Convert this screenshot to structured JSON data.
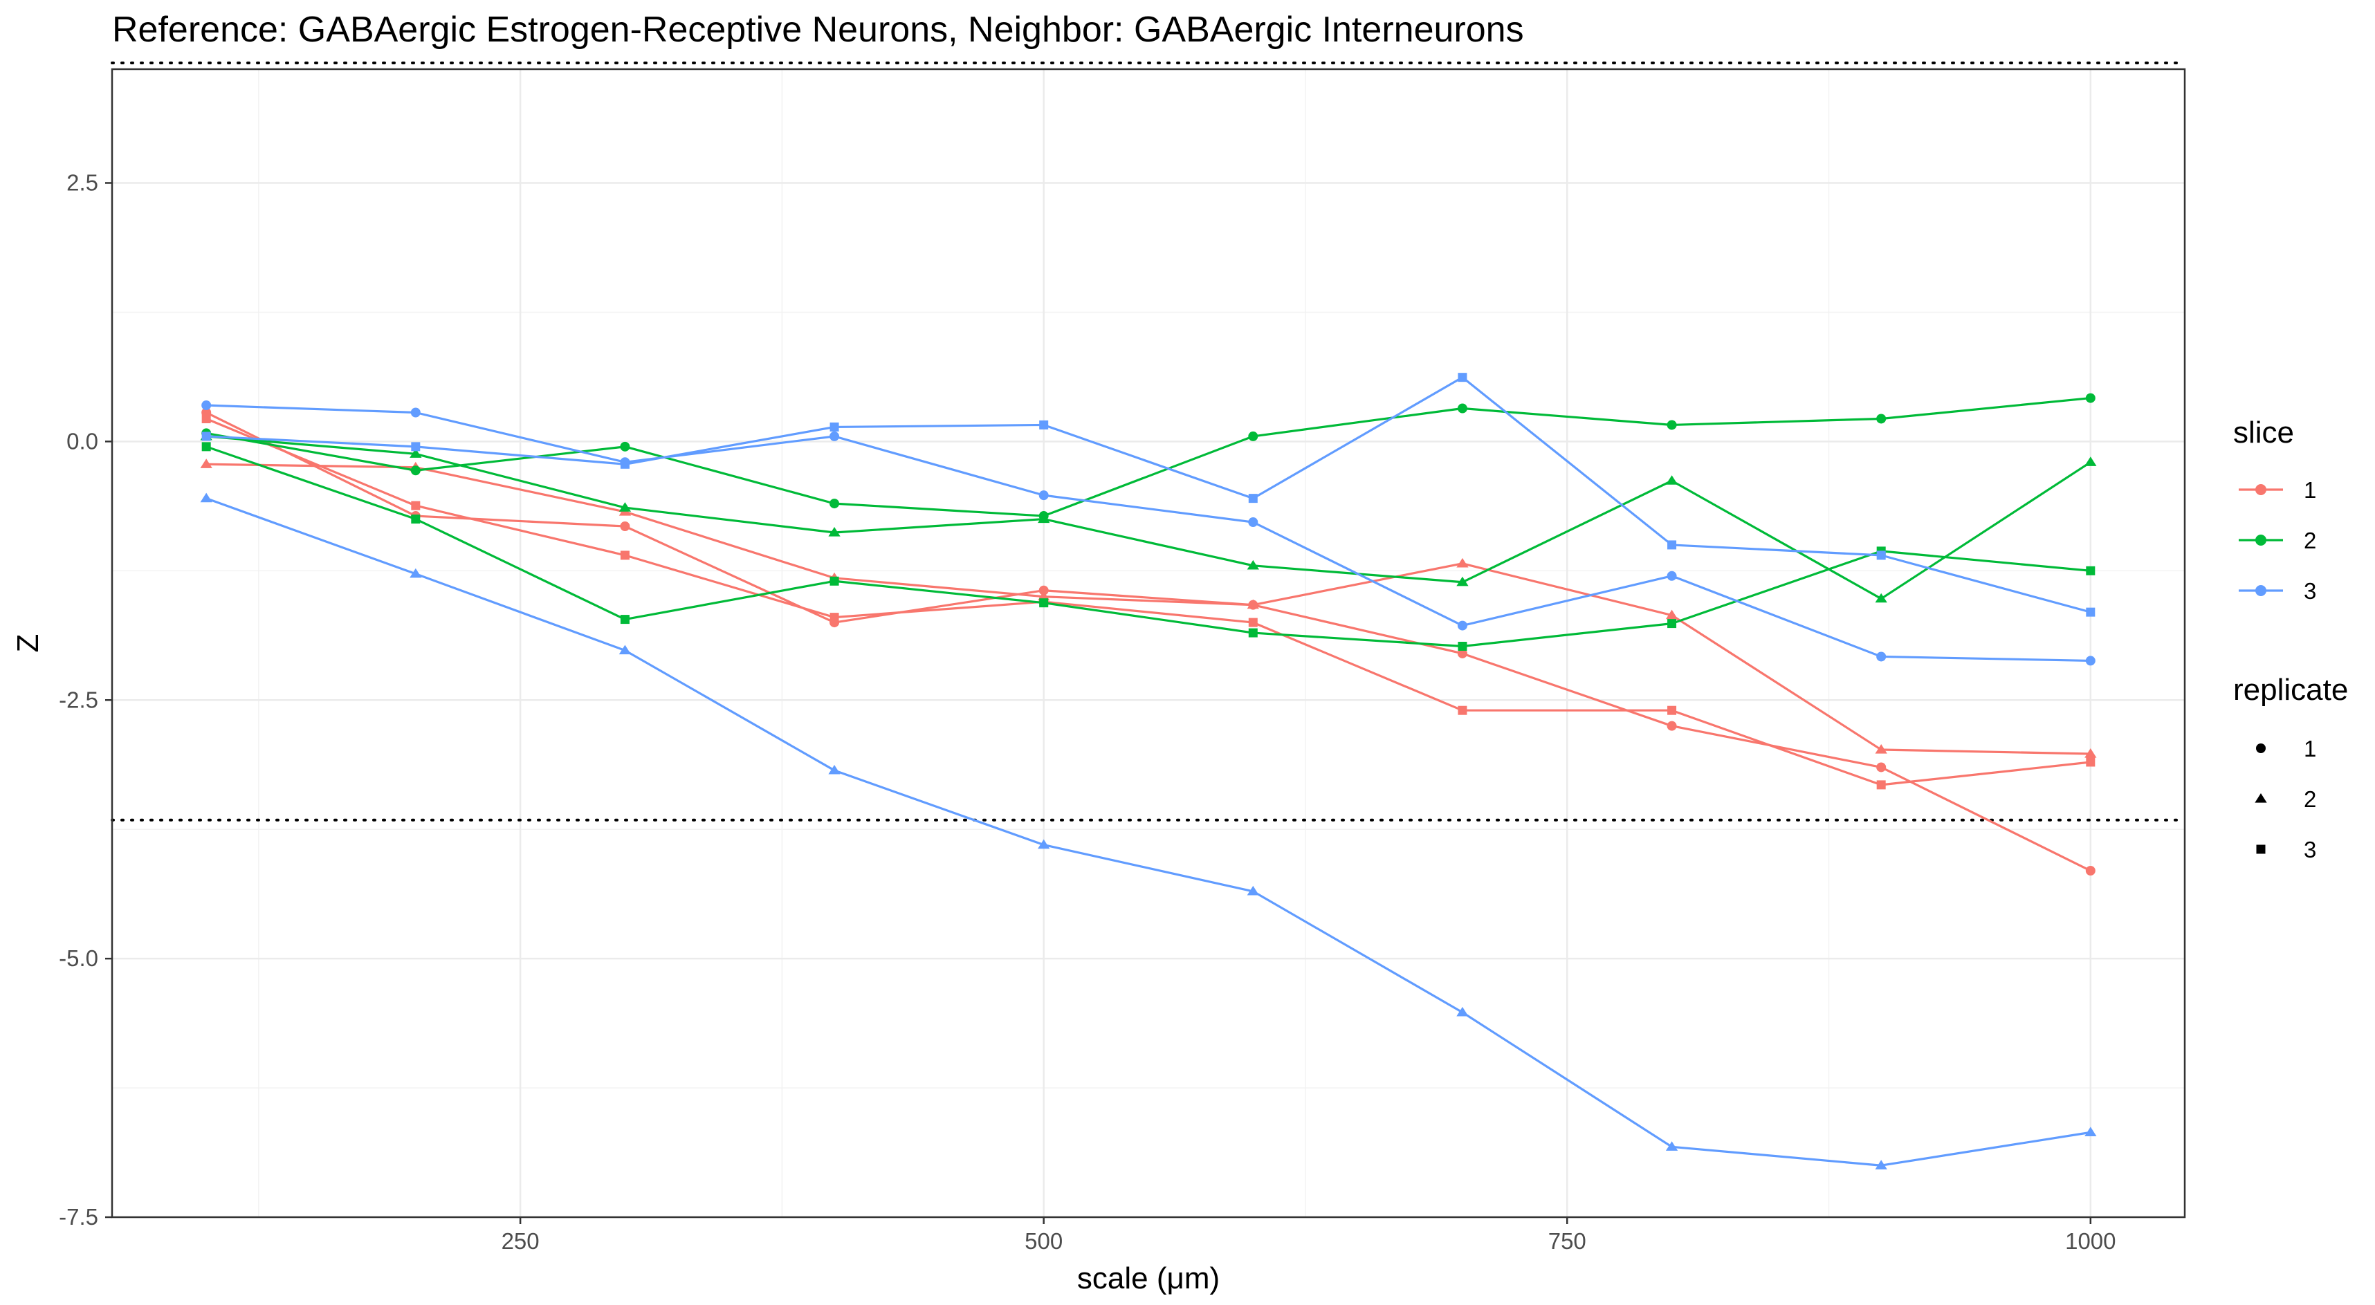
{
  "chart_data": {
    "type": "line",
    "title": "Reference: GABAergic Estrogen-Receptive Neurons, Neighbor: GABAergic Interneurons",
    "xlabel": "scale (μm)",
    "ylabel": "Z",
    "xlim": [
      55,
      1045
    ],
    "ylim": [
      -7.5,
      3.6
    ],
    "x_ticks": [
      250,
      500,
      750,
      1000
    ],
    "y_ticks": [
      -7.5,
      -5.0,
      -2.5,
      0.0,
      2.5
    ],
    "x_tick_labels": [
      "250",
      "500",
      "750",
      "1000"
    ],
    "y_tick_labels": [
      "-7.5",
      "-5.0",
      "-2.5",
      "0.0",
      "2.5"
    ],
    "grid": true,
    "reference_lines": [
      3.66,
      -3.66
    ],
    "legend_position": "right",
    "slice_legend": {
      "title": "slice",
      "items": [
        {
          "label": "1",
          "color": "#F8766D"
        },
        {
          "label": "2",
          "color": "#00BA38"
        },
        {
          "label": "3",
          "color": "#619CFF"
        }
      ]
    },
    "replicate_legend": {
      "title": "replicate",
      "items": [
        {
          "label": "1",
          "shape": "circle"
        },
        {
          "label": "2",
          "shape": "triangle"
        },
        {
          "label": "3",
          "shape": "square"
        }
      ]
    },
    "x": [
      100,
      200,
      300,
      400,
      500,
      600,
      700,
      800,
      900,
      1000
    ],
    "series": [
      {
        "slice": "1",
        "replicate": "1",
        "values": [
          0.28,
          -0.72,
          -0.82,
          -1.75,
          -1.44,
          -1.58,
          -2.05,
          -2.75,
          -3.15,
          -4.15
        ]
      },
      {
        "slice": "1",
        "replicate": "2",
        "values": [
          -0.22,
          -0.25,
          -0.68,
          -1.32,
          -1.5,
          -1.58,
          -1.18,
          -1.68,
          -2.98,
          -3.02
        ]
      },
      {
        "slice": "1",
        "replicate": "3",
        "values": [
          0.22,
          -0.62,
          -1.1,
          -1.7,
          -1.55,
          -1.75,
          -2.6,
          -2.6,
          -3.32,
          -3.1
        ]
      },
      {
        "slice": "2",
        "replicate": "1",
        "values": [
          0.08,
          -0.28,
          -0.05,
          -0.6,
          -0.72,
          0.05,
          0.32,
          0.16,
          0.22,
          0.42
        ]
      },
      {
        "slice": "2",
        "replicate": "2",
        "values": [
          0.05,
          -0.12,
          -0.64,
          -0.88,
          -0.75,
          -1.2,
          -1.36,
          -0.38,
          -1.52,
          -0.2
        ]
      },
      {
        "slice": "2",
        "replicate": "3",
        "values": [
          -0.05,
          -0.75,
          -1.72,
          -1.35,
          -1.56,
          -1.85,
          -1.98,
          -1.76,
          -1.06,
          -1.25
        ]
      },
      {
        "slice": "3",
        "replicate": "1",
        "values": [
          0.35,
          0.28,
          -0.2,
          0.05,
          -0.52,
          -0.78,
          -1.78,
          -1.3,
          -2.08,
          -2.12
        ]
      },
      {
        "slice": "3",
        "replicate": "2",
        "values": [
          -0.55,
          -1.28,
          -2.02,
          -3.18,
          -3.9,
          -4.35,
          -5.52,
          -6.82,
          -7.0,
          -6.68
        ]
      },
      {
        "slice": "3",
        "replicate": "3",
        "values": [
          0.05,
          -0.05,
          -0.22,
          0.14,
          0.16,
          -0.55,
          0.62,
          -1.0,
          -1.1,
          -1.65
        ]
      }
    ]
  }
}
